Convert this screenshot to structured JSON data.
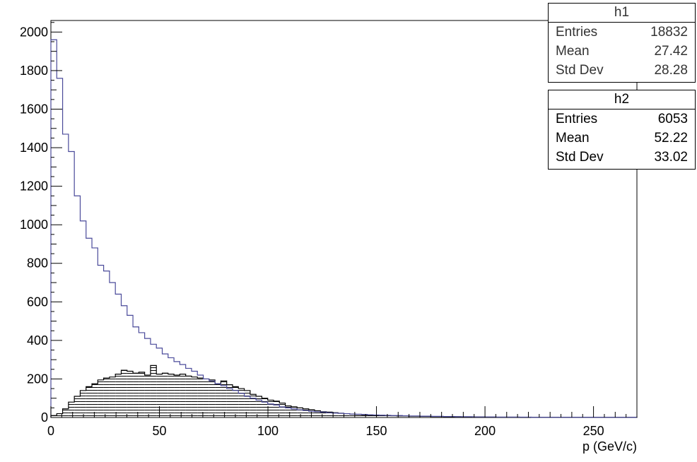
{
  "chart_data": {
    "type": "histogram",
    "xlabel": "p (GeV/c)",
    "ylabel": "",
    "xlim": [
      0,
      270
    ],
    "ylim": [
      0,
      2060
    ],
    "x_ticks": [
      0,
      50,
      100,
      150,
      200,
      250
    ],
    "y_ticks": [
      0,
      200,
      400,
      600,
      800,
      1000,
      1200,
      1400,
      1600,
      1800,
      2000
    ],
    "bin_width": 2.7,
    "grid": false,
    "series": [
      {
        "name": "h1",
        "color": "#4a4a9a",
        "values": [
          1960,
          1760,
          1470,
          1380,
          1150,
          1020,
          930,
          880,
          790,
          760,
          700,
          640,
          580,
          530,
          470,
          440,
          410,
          380,
          360,
          330,
          310,
          290,
          275,
          255,
          240,
          220,
          200,
          190,
          175,
          165,
          150,
          140,
          125,
          110,
          100,
          90,
          80,
          70,
          65,
          55,
          50,
          45,
          40,
          36,
          32,
          30,
          28,
          25,
          23,
          22,
          20,
          18,
          17,
          16,
          14,
          13,
          12,
          11,
          10,
          10,
          9,
          8,
          8,
          7,
          7,
          6,
          6,
          5,
          5,
          4,
          4,
          4,
          3,
          3,
          3,
          3,
          2,
          2,
          2,
          2,
          2,
          2,
          1,
          1,
          1,
          1,
          1,
          1,
          1,
          1,
          1,
          1,
          1,
          1,
          1,
          1,
          1,
          1,
          1,
          1
        ]
      },
      {
        "name": "h2",
        "color": "#000000",
        "fill": "hatched",
        "values": [
          10,
          20,
          45,
          80,
          110,
          140,
          160,
          175,
          195,
          205,
          210,
          225,
          245,
          240,
          230,
          235,
          220,
          270,
          225,
          230,
          225,
          220,
          225,
          215,
          210,
          205,
          200,
          195,
          175,
          190,
          170,
          160,
          150,
          140,
          120,
          110,
          100,
          90,
          85,
          75,
          60,
          55,
          50,
          45,
          40,
          35,
          30,
          28,
          25,
          22,
          20,
          18,
          16,
          14,
          13,
          12,
          11,
          10,
          9,
          8,
          8,
          7,
          7,
          6,
          6,
          5,
          5,
          4,
          4,
          4,
          3,
          3,
          3,
          3,
          2,
          2,
          2,
          2,
          2,
          2,
          1,
          1,
          1,
          1,
          1,
          1,
          1,
          1,
          1,
          1,
          1,
          1,
          1,
          1,
          1,
          1,
          1,
          1,
          1,
          1
        ]
      }
    ]
  },
  "stats": [
    {
      "title": "h1",
      "rows": [
        {
          "label": "Entries",
          "value": "18832"
        },
        {
          "label": "Mean",
          "value": "27.42"
        },
        {
          "label": "Std Dev",
          "value": "28.28"
        }
      ]
    },
    {
      "title": "h2",
      "rows": [
        {
          "label": "Entries",
          "value": "6053"
        },
        {
          "label": "Mean",
          "value": "52.22"
        },
        {
          "label": "Std Dev",
          "value": "33.02"
        }
      ]
    }
  ]
}
